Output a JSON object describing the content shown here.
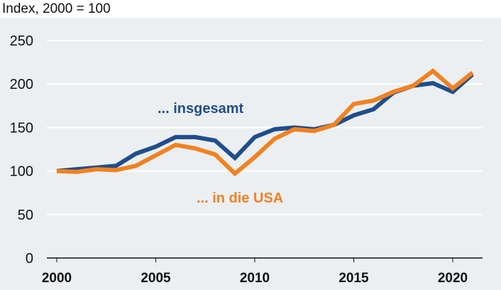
{
  "chart_data": {
    "type": "line",
    "subtitle": "Index, 2000 = 100",
    "x": [
      2000,
      2001,
      2002,
      2003,
      2004,
      2005,
      2006,
      2007,
      2008,
      2009,
      2010,
      2011,
      2012,
      2013,
      2014,
      2015,
      2016,
      2017,
      2018,
      2019,
      2020,
      2021
    ],
    "series": [
      {
        "name": "... insgesamt",
        "color": "#1f4e8c",
        "values": [
          100,
          102,
          104,
          106,
          120,
          128,
          139,
          139,
          135,
          115,
          139,
          148,
          150,
          148,
          153,
          164,
          171,
          190,
          198,
          201,
          191,
          211
        ]
      },
      {
        "name": "... in die USA",
        "color": "#f08221",
        "values": [
          100,
          99,
          102,
          101,
          106,
          118,
          130,
          126,
          119,
          97,
          116,
          137,
          148,
          146,
          153,
          177,
          181,
          191,
          198,
          215,
          195,
          213
        ]
      }
    ],
    "ylim": [
      0,
      250
    ],
    "yticks": [
      "0",
      "50",
      "100",
      "150",
      "200",
      "250"
    ],
    "xticks": [
      "2000",
      "2005",
      "2010",
      "2015",
      "2020"
    ],
    "grid": true,
    "background": "#eceff1"
  }
}
